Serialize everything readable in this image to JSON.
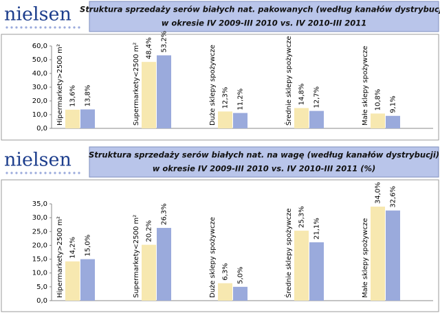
{
  "chart_data": [
    {
      "type": "bar",
      "logo": "nielsen",
      "title": [
        "Struktura sprzedaży serów białych nat. pakowanych (według kanałów dystrybucji)",
        "w okresie IV 2009-III 2010 vs. IV 2010-III 2011"
      ],
      "categories": [
        "Hipermarkety>2500 m²",
        "Supermarkety<2500 m²",
        "Duże sklepy spożywcze",
        "Średnie sklepy spożywcze",
        "Małe sklepy spożywcze"
      ],
      "series": [
        {
          "color": "#f7e8b0",
          "values": [
            13.6,
            48.4,
            12.3,
            14.8,
            10.8
          ],
          "value_labels": [
            "13,6%",
            "48,4%",
            "12,3%",
            "14,8%",
            "10,8%"
          ]
        },
        {
          "color": "#9aaadc",
          "values": [
            13.8,
            53.2,
            11.2,
            12.7,
            9.1
          ],
          "value_labels": [
            "13,8%",
            "53,2%",
            "11,2%",
            "12,7%",
            "9,1%"
          ]
        }
      ],
      "ylim": [
        0,
        60
      ],
      "yticks": [
        {
          "value": 0,
          "label": "0,0"
        },
        {
          "value": 10,
          "label": "10,0"
        },
        {
          "value": 20,
          "label": "20,0"
        },
        {
          "value": 30,
          "label": "30,0"
        },
        {
          "value": 40,
          "label": "40,0"
        },
        {
          "value": 50,
          "label": "50,0"
        },
        {
          "value": 60,
          "label": "60,0"
        }
      ],
      "grid": false
    },
    {
      "type": "bar",
      "logo": "nielsen",
      "title": [
        "Struktura sprzedaży serów białych nat. na wagę (według kanałów dystrybucji)",
        "w okresie IV 2009-III 2010 vs. IV 2010-III 2011 (%)"
      ],
      "categories": [
        "Hipermarkety>2500 m²",
        "Supermarkety<2500 m²",
        "Duże sklepy spożywcze",
        "Średnie sklepy spożywcze",
        "Małe sklepy spożywcze"
      ],
      "series": [
        {
          "color": "#f7e8b0",
          "values": [
            14.2,
            20.2,
            6.3,
            25.3,
            34.0
          ],
          "value_labels": [
            "14,2%",
            "20,2%",
            "6,3%",
            "25,3%",
            "34,0%"
          ]
        },
        {
          "color": "#9aaadc",
          "values": [
            15.0,
            26.3,
            5.0,
            21.1,
            32.6
          ],
          "value_labels": [
            "15,0%",
            "26,3%",
            "5,0%",
            "21,1%",
            "32,6%"
          ]
        }
      ],
      "ylim": [
        0,
        35
      ],
      "yticks": [
        {
          "value": 0,
          "label": "0,0"
        },
        {
          "value": 5,
          "label": "5,0"
        },
        {
          "value": 10,
          "label": "10,0"
        },
        {
          "value": 15,
          "label": "15,0"
        },
        {
          "value": 20,
          "label": "20,0"
        },
        {
          "value": 25,
          "label": "25,0"
        },
        {
          "value": 30,
          "label": "30,0"
        },
        {
          "value": 35,
          "label": "35,0"
        }
      ],
      "grid": false
    }
  ]
}
